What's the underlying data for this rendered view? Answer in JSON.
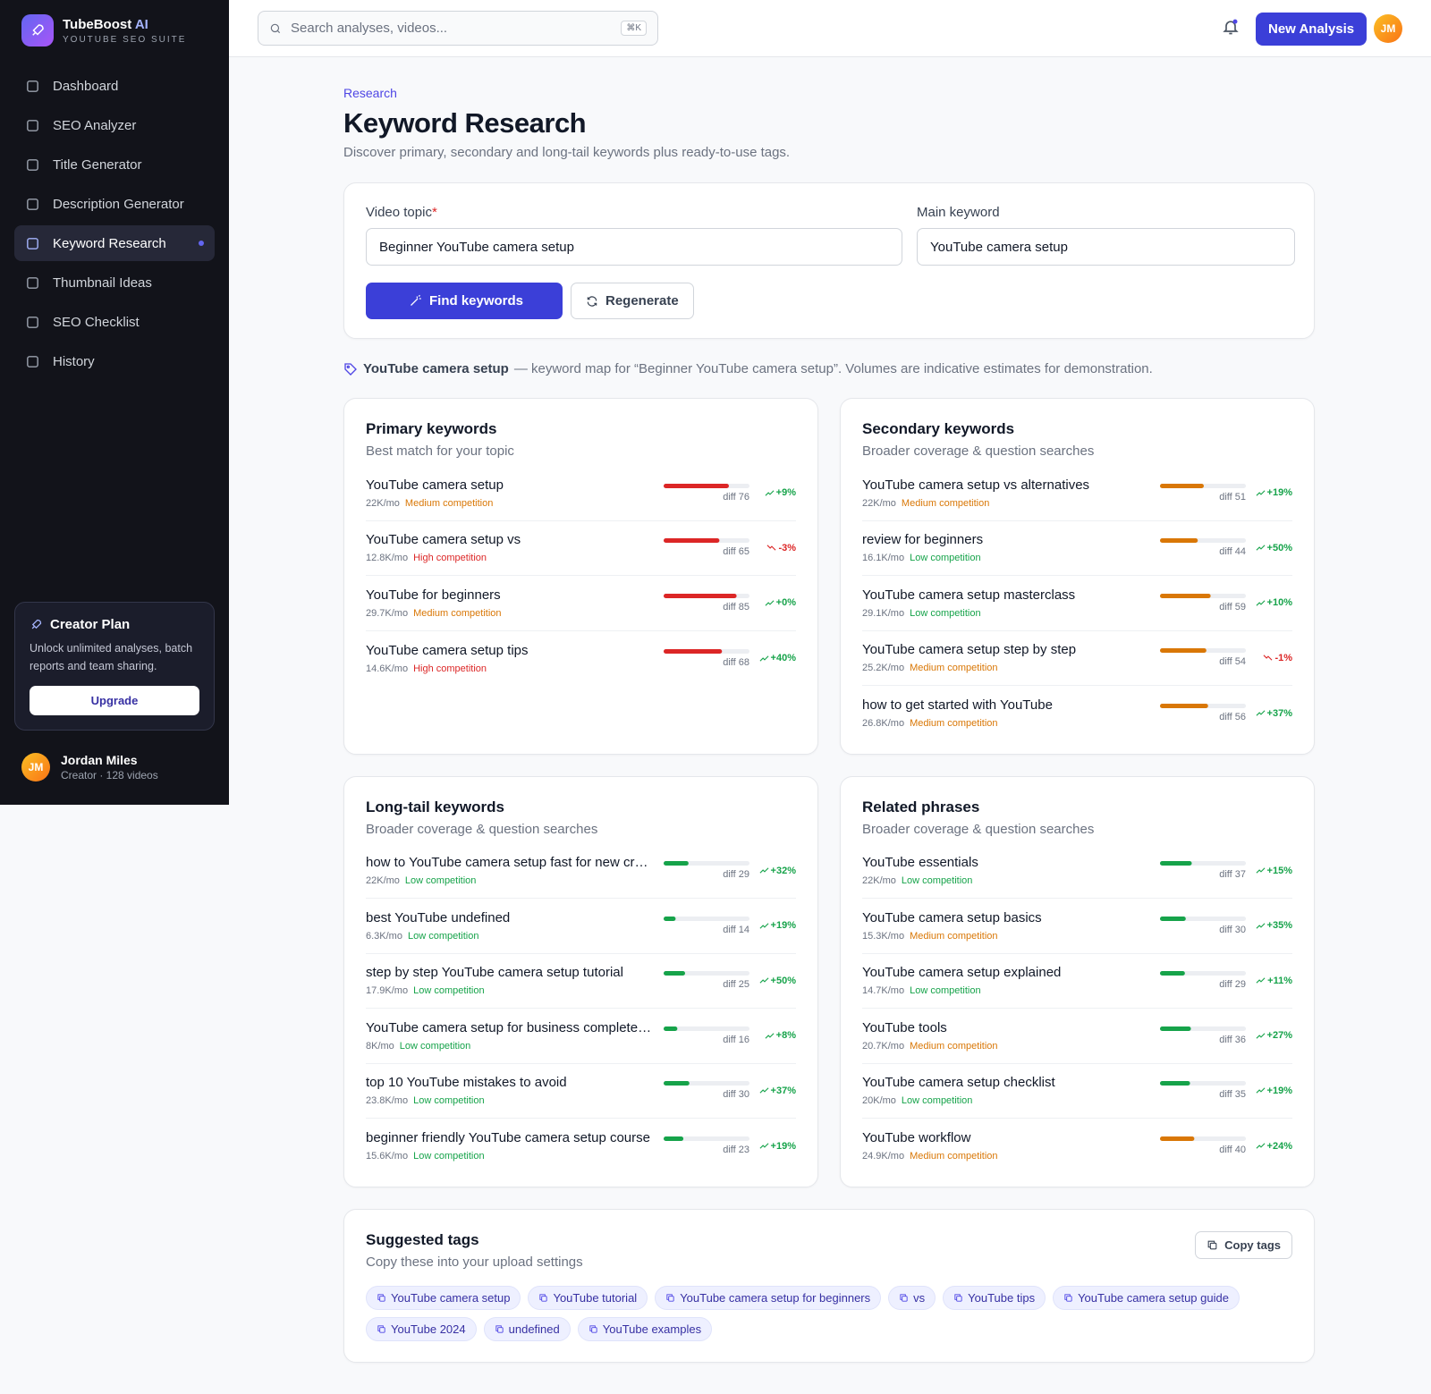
{
  "brand": {
    "name": "TubeBoost",
    "accent": "AI",
    "tagline": "YOUTUBE SEO SUITE"
  },
  "nav": [
    {
      "label": "Dashboard",
      "active": false
    },
    {
      "label": "SEO Analyzer",
      "active": false
    },
    {
      "label": "Title Generator",
      "active": false
    },
    {
      "label": "Description Generator",
      "active": false
    },
    {
      "label": "Keyword Research",
      "active": true
    },
    {
      "label": "Thumbnail Ideas",
      "active": false
    },
    {
      "label": "SEO Checklist",
      "active": false
    },
    {
      "label": "History",
      "active": false
    }
  ],
  "plan": {
    "title": "Creator Plan",
    "text": "Unlock unlimited analyses, batch reports and team sharing.",
    "button": "Upgrade"
  },
  "user": {
    "initials": "JM",
    "name": "Jordan Miles",
    "meta": "Creator · 128 videos"
  },
  "topbar": {
    "search": "Search analyses, videos...",
    "shortcut": "⌘K",
    "button": "New Analysis",
    "initials": "JM"
  },
  "header": {
    "eyebrow": "Research",
    "title": "Keyword Research",
    "subtitle": "Discover primary, secondary and long-tail keywords plus ready-to-use tags."
  },
  "form": {
    "topic_label": "Video topic",
    "required": "*",
    "topic_value": "Beginner YouTube camera setup",
    "keyword_label": "Main keyword",
    "keyword_value": "YouTube camera setup",
    "find": "Find keywords",
    "regen": "Regenerate"
  },
  "summary": {
    "keyword": "YouTube camera setup",
    "text": "— keyword map for “Beginner YouTube camera setup”. Volumes are indicative estimates for demonstration."
  },
  "difficulty_prefix": "diff",
  "cards": [
    {
      "title": "Primary keywords",
      "subtitle": "Best match for your topic",
      "items": [
        {
          "keyword": "YouTube camera setup",
          "volume": "22K/mo",
          "competition": "Medium competition",
          "competition_color": "#d97706",
          "difficulty": 76,
          "trend": "+9%"
        },
        {
          "keyword": "YouTube camera setup vs",
          "volume": "12.8K/mo",
          "competition": "High competition",
          "competition_color": "#dc2626",
          "difficulty": 65,
          "trend": "-3%"
        },
        {
          "keyword": "YouTube for beginners",
          "volume": "29.7K/mo",
          "competition": "Medium competition",
          "competition_color": "#d97706",
          "difficulty": 85,
          "trend": "+0%"
        },
        {
          "keyword": "YouTube camera setup tips",
          "volume": "14.6K/mo",
          "competition": "High competition",
          "competition_color": "#dc2626",
          "difficulty": 68,
          "trend": "+40%"
        }
      ]
    },
    {
      "title": "Secondary keywords",
      "subtitle": "Broader coverage & question searches",
      "items": [
        {
          "keyword": "YouTube camera setup vs alternatives",
          "volume": "22K/mo",
          "competition": "Medium competition",
          "competition_color": "#d97706",
          "difficulty": 51,
          "trend": "+19%"
        },
        {
          "keyword": "review for beginners",
          "volume": "16.1K/mo",
          "competition": "Low competition",
          "competition_color": "#16a34a",
          "difficulty": 44,
          "trend": "+50%"
        },
        {
          "keyword": "YouTube camera setup masterclass",
          "volume": "29.1K/mo",
          "competition": "Low competition",
          "competition_color": "#16a34a",
          "difficulty": 59,
          "trend": "+10%"
        },
        {
          "keyword": "YouTube camera setup step by step",
          "volume": "25.2K/mo",
          "competition": "Medium competition",
          "competition_color": "#d97706",
          "difficulty": 54,
          "trend": "-1%"
        },
        {
          "keyword": "how to get started with YouTube",
          "volume": "26.8K/mo",
          "competition": "Medium competition",
          "competition_color": "#d97706",
          "difficulty": 56,
          "trend": "+37%"
        }
      ]
    },
    {
      "title": "Long-tail keywords",
      "subtitle": "Broader coverage & question searches",
      "items": [
        {
          "keyword": "how to YouTube camera setup fast for new creators",
          "volume": "22K/mo",
          "competition": "Low competition",
          "competition_color": "#16a34a",
          "difficulty": 29,
          "trend": "+32%"
        },
        {
          "keyword": "best YouTube undefined",
          "volume": "6.3K/mo",
          "competition": "Low competition",
          "competition_color": "#16a34a",
          "difficulty": 14,
          "trend": "+19%"
        },
        {
          "keyword": "step by step YouTube camera setup tutorial",
          "volume": "17.9K/mo",
          "competition": "Low competition",
          "competition_color": "#16a34a",
          "difficulty": 25,
          "trend": "+50%"
        },
        {
          "keyword": "YouTube camera setup for business complete guide",
          "volume": "8K/mo",
          "competition": "Low competition",
          "competition_color": "#16a34a",
          "difficulty": 16,
          "trend": "+8%"
        },
        {
          "keyword": "top 10 YouTube mistakes to avoid",
          "volume": "23.8K/mo",
          "competition": "Low competition",
          "competition_color": "#16a34a",
          "difficulty": 30,
          "trend": "+37%"
        },
        {
          "keyword": "beginner friendly YouTube camera setup course",
          "volume": "15.6K/mo",
          "competition": "Low competition",
          "competition_color": "#16a34a",
          "difficulty": 23,
          "trend": "+19%"
        }
      ]
    },
    {
      "title": "Related phrases",
      "subtitle": "Broader coverage & question searches",
      "items": [
        {
          "keyword": "YouTube essentials",
          "volume": "22K/mo",
          "competition": "Low competition",
          "competition_color": "#16a34a",
          "difficulty": 37,
          "trend": "+15%"
        },
        {
          "keyword": "YouTube camera setup basics",
          "volume": "15.3K/mo",
          "competition": "Medium competition",
          "competition_color": "#d97706",
          "difficulty": 30,
          "trend": "+35%"
        },
        {
          "keyword": "YouTube camera setup explained",
          "volume": "14.7K/mo",
          "competition": "Low competition",
          "competition_color": "#16a34a",
          "difficulty": 29,
          "trend": "+11%"
        },
        {
          "keyword": "YouTube tools",
          "volume": "20.7K/mo",
          "competition": "Medium competition",
          "competition_color": "#d97706",
          "difficulty": 36,
          "trend": "+27%"
        },
        {
          "keyword": "YouTube camera setup checklist",
          "volume": "20K/mo",
          "competition": "Low competition",
          "competition_color": "#16a34a",
          "difficulty": 35,
          "trend": "+19%"
        },
        {
          "keyword": "YouTube workflow",
          "volume": "24.9K/mo",
          "competition": "Medium competition",
          "competition_color": "#d97706",
          "difficulty": 40,
          "trend": "+24%"
        }
      ]
    }
  ],
  "tags": {
    "title": "Suggested tags",
    "subtitle": "Copy these into your upload settings",
    "copy": "Copy tags",
    "items": [
      "YouTube camera setup",
      "YouTube tutorial",
      "YouTube camera setup for beginners",
      "vs",
      "YouTube tips",
      "YouTube camera setup guide",
      "YouTube 2024",
      "undefined",
      "YouTube examples"
    ]
  }
}
